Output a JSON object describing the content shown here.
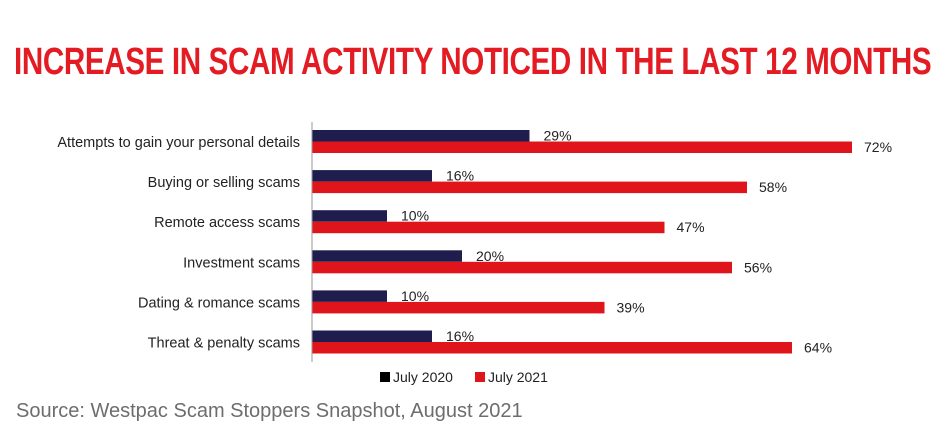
{
  "chart_data": {
    "type": "bar",
    "orientation": "horizontal",
    "title": "INCREASE IN SCAM ACTIVITY NOTICED IN THE LAST 12 MONTHS",
    "categories": [
      "Attempts to gain your personal details",
      "Buying or selling scams",
      "Remote access scams",
      "Investment scams",
      "Dating & romance scams",
      "Threat & penalty scams"
    ],
    "series": [
      {
        "name": "July 2020",
        "color": "#1f1d4e",
        "values": [
          29,
          16,
          10,
          20,
          10,
          16
        ]
      },
      {
        "name": "July 2021",
        "color": "#e0141b",
        "values": [
          72,
          58,
          47,
          56,
          39,
          64
        ]
      }
    ],
    "value_suffix": "%",
    "xlim": [
      0,
      100
    ],
    "grid": false,
    "legend_position": "bottom-center"
  },
  "source": "Source: Westpac Scam Stoppers Snapshot, August 2021"
}
